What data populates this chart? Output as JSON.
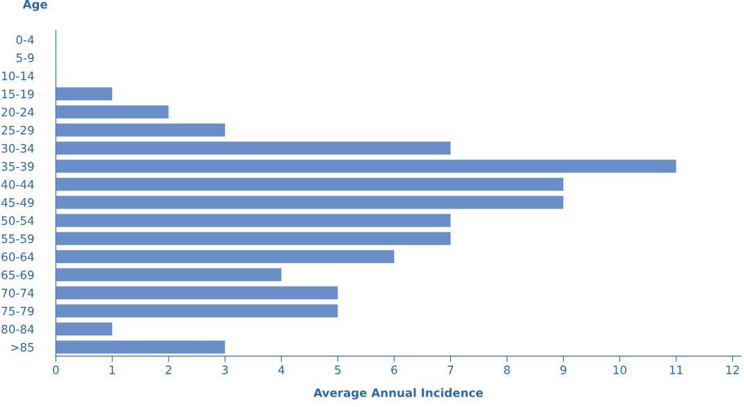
{
  "chart_data": {
    "type": "bar",
    "orientation": "horizontal",
    "categories": [
      "0-4",
      "5-9",
      "10-14",
      "15-19",
      "20-24",
      "25-29",
      "30-34",
      "35-39",
      "40-44",
      "45-49",
      "50-54",
      "55-59",
      "60-64",
      "65-69",
      "70-74",
      "75-79",
      "80-84",
      ">85"
    ],
    "values": [
      0,
      0,
      0,
      1,
      2,
      3,
      7,
      11,
      9,
      9,
      7,
      7,
      6,
      4,
      5,
      5,
      1,
      3
    ],
    "color": "#6a8fc8",
    "xlabel": "Average Annual Incidence",
    "ylabel": "Age",
    "xlim": [
      0,
      12.15
    ],
    "xticks": [
      0,
      1,
      2,
      3,
      4,
      5,
      6,
      7,
      8,
      9,
      10,
      11,
      12
    ],
    "grid": false
  }
}
